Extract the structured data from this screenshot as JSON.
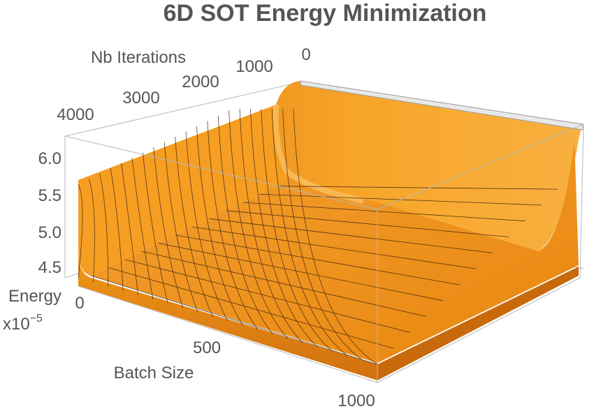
{
  "chart_data": {
    "type": "surface3d",
    "title": "6D SOT Energy Minimization",
    "x_axis": {
      "label": "Batch Size",
      "range": [
        0,
        1000
      ],
      "ticks": [
        "0",
        "500",
        "1000"
      ]
    },
    "y_axis": {
      "label": "Nb Iterations",
      "range": [
        0,
        4000
      ],
      "ticks": [
        "0",
        "1000",
        "2000",
        "3000",
        "4000"
      ]
    },
    "z_axis": {
      "label": "Energy",
      "multiplier": "x10",
      "exponent": "−5",
      "range": [
        4.3,
        6.3
      ],
      "ticks": [
        "4.5",
        "5.0",
        "5.5",
        "6.0"
      ]
    },
    "surface": {
      "description_free_samples": {
        "batch_size": [
          0,
          1000
        ],
        "iterations": [
          0,
          4000
        ],
        "energy_at_iteration_0": [
          5.55,
          6.28
        ],
        "energy_floor": 4.35
      }
    },
    "colors": {
      "surface": "#f59a1c",
      "surface_light": "#ffc85a",
      "surface_dark": "#c8680a",
      "mesh": "#3a2410"
    }
  }
}
